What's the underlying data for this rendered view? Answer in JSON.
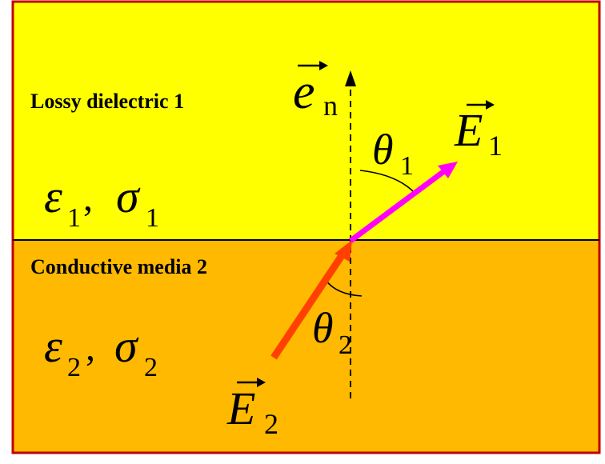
{
  "colors": {
    "region_1": "#ffff00",
    "region_2": "#ffb900",
    "frame": "#c00000",
    "interface": "#000000",
    "normal": "#000000",
    "vector_e1": "#ff00ff",
    "vector_e2": "#ff4000"
  },
  "region_1": {
    "label": "Lossy dielectric 1",
    "epsilon_symbol": "ε",
    "epsilon_sub": "1",
    "separator": ",",
    "sigma_symbol": "σ",
    "sigma_sub": "1"
  },
  "region_2": {
    "label": "Conductive media 2",
    "epsilon_symbol": "ε",
    "epsilon_sub": "2",
    "separator": ",",
    "sigma_symbol": "σ",
    "sigma_sub": "2"
  },
  "normal_vector": {
    "symbol": "e",
    "sub": "n"
  },
  "vector_1": {
    "symbol": "E",
    "sub": "1"
  },
  "vector_2": {
    "symbol": "E",
    "sub": "2"
  },
  "angle_1": {
    "symbol": "θ",
    "sub": "1"
  },
  "angle_2": {
    "symbol": "θ",
    "sub": "2"
  }
}
